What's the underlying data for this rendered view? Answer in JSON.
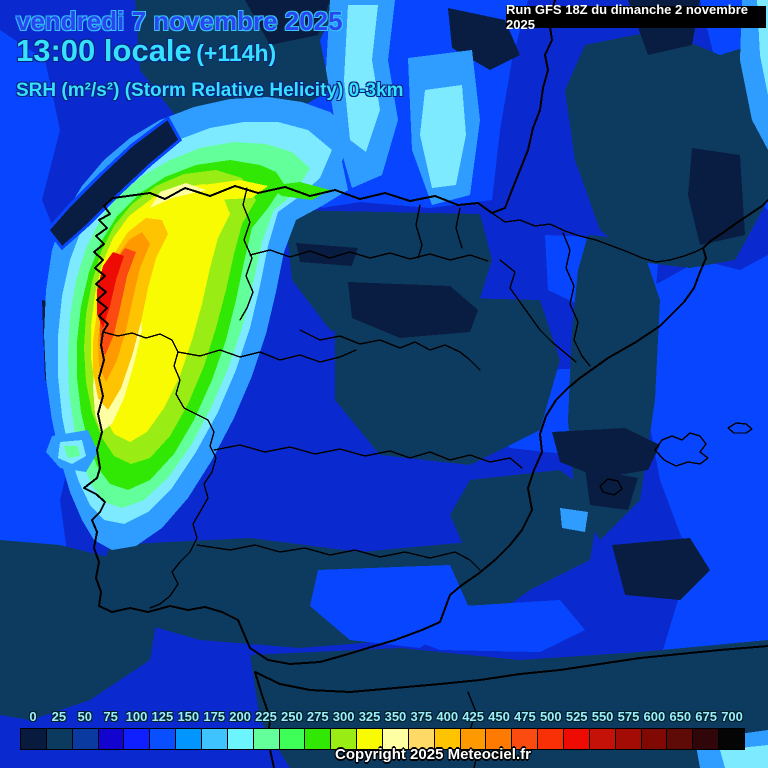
{
  "header": {
    "date": "vendredi 7 novembre 2025",
    "time": "13:00 locale",
    "offset": "(+114h)",
    "parameter": "SRH (m²/s²) (Storm Relative Helicity) 0-3km"
  },
  "run_box": {
    "text": "Run GFS 18Z du dimanche 2 novembre 2025"
  },
  "footer": {
    "copyright": "Copyright 2025 Meteociel.fr"
  },
  "colorbar": {
    "ticks": [
      "0",
      "25",
      "50",
      "75",
      "100",
      "125",
      "150",
      "175",
      "200",
      "225",
      "250",
      "275",
      "300",
      "325",
      "350",
      "375",
      "400",
      "425",
      "450",
      "475",
      "500",
      "525",
      "550",
      "575",
      "600",
      "650",
      "675",
      "700"
    ],
    "colors": [
      "#081b3e",
      "#0b3a5e",
      "#0a3aa0",
      "#1203cf",
      "#0f1fff",
      "#0a4fff",
      "#0095ff",
      "#3ec3ff",
      "#6cf4ff",
      "#63ff9a",
      "#3dff57",
      "#30e803",
      "#9aec15",
      "#f8fb02",
      "#fdffa2",
      "#ffd966",
      "#fec301",
      "#fe9900",
      "#fe7a00",
      "#fb4b10",
      "#f93005",
      "#ee0b04",
      "#c51208",
      "#a30b05",
      "#810903",
      "#5e0a06",
      "#31060a",
      "#050505"
    ]
  },
  "map": {
    "description": "SRH 0-3km filled contour field over the Iberian Peninsula",
    "palette": {
      "base": "#0a2ad0",
      "bright": "#0845ff",
      "petrol": "#0d3a5f",
      "navy": "#091c41",
      "sky": "#2f9dff",
      "pale_cyan": "#7deaff",
      "spring": "#63ff9a",
      "green": "#30e803",
      "chartreuse": "#9aec15",
      "yellow": "#f8fb02",
      "cream": "#fdffa2",
      "gold": "#fec301",
      "orange": "#fe9900",
      "orange_red": "#fb4b10",
      "red": "#ee0b04"
    }
  }
}
